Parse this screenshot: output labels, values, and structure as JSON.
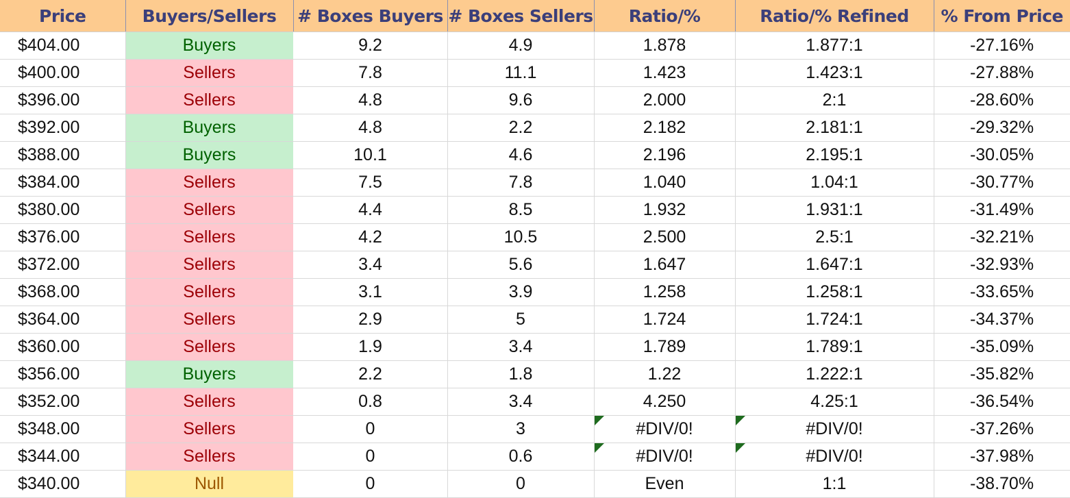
{
  "headers": [
    "Price",
    "Buyers/Sellers",
    "# Boxes Buyers",
    "# Boxes Sellers",
    "Ratio/%",
    "Ratio/% Refined",
    "% From Price"
  ],
  "colors": {
    "header_bg": "#fdcb8f",
    "header_text": "#3b3f7a",
    "buyers_bg": "#c6efce",
    "buyers_text": "#006100",
    "sellers_bg": "#ffc7ce",
    "sellers_text": "#9c0006",
    "null_bg": "#ffeb9c",
    "null_text": "#9c5700",
    "error_flag": "#1e6b1e"
  },
  "rows": [
    {
      "price": "$404.00",
      "side": "Buyers",
      "buyers": "9.2",
      "sellers": "4.9",
      "ratio": "1.878",
      "refined": "1.877:1",
      "from_price": "-27.16%",
      "error_flag": false
    },
    {
      "price": "$400.00",
      "side": "Sellers",
      "buyers": "7.8",
      "sellers": "11.1",
      "ratio": "1.423",
      "refined": "1.423:1",
      "from_price": "-27.88%",
      "error_flag": false
    },
    {
      "price": "$396.00",
      "side": "Sellers",
      "buyers": "4.8",
      "sellers": "9.6",
      "ratio": "2.000",
      "refined": "2:1",
      "from_price": "-28.60%",
      "error_flag": false
    },
    {
      "price": "$392.00",
      "side": "Buyers",
      "buyers": "4.8",
      "sellers": "2.2",
      "ratio": "2.182",
      "refined": "2.181:1",
      "from_price": "-29.32%",
      "error_flag": false
    },
    {
      "price": "$388.00",
      "side": "Buyers",
      "buyers": "10.1",
      "sellers": "4.6",
      "ratio": "2.196",
      "refined": "2.195:1",
      "from_price": "-30.05%",
      "error_flag": false
    },
    {
      "price": "$384.00",
      "side": "Sellers",
      "buyers": "7.5",
      "sellers": "7.8",
      "ratio": "1.040",
      "refined": "1.04:1",
      "from_price": "-30.77%",
      "error_flag": false
    },
    {
      "price": "$380.00",
      "side": "Sellers",
      "buyers": "4.4",
      "sellers": "8.5",
      "ratio": "1.932",
      "refined": "1.931:1",
      "from_price": "-31.49%",
      "error_flag": false
    },
    {
      "price": "$376.00",
      "side": "Sellers",
      "buyers": "4.2",
      "sellers": "10.5",
      "ratio": "2.500",
      "refined": "2.5:1",
      "from_price": "-32.21%",
      "error_flag": false
    },
    {
      "price": "$372.00",
      "side": "Sellers",
      "buyers": "3.4",
      "sellers": "5.6",
      "ratio": "1.647",
      "refined": "1.647:1",
      "from_price": "-32.93%",
      "error_flag": false
    },
    {
      "price": "$368.00",
      "side": "Sellers",
      "buyers": "3.1",
      "sellers": "3.9",
      "ratio": "1.258",
      "refined": "1.258:1",
      "from_price": "-33.65%",
      "error_flag": false
    },
    {
      "price": "$364.00",
      "side": "Sellers",
      "buyers": "2.9",
      "sellers": "5",
      "ratio": "1.724",
      "refined": "1.724:1",
      "from_price": "-34.37%",
      "error_flag": false
    },
    {
      "price": "$360.00",
      "side": "Sellers",
      "buyers": "1.9",
      "sellers": "3.4",
      "ratio": "1.789",
      "refined": "1.789:1",
      "from_price": "-35.09%",
      "error_flag": false
    },
    {
      "price": "$356.00",
      "side": "Buyers",
      "buyers": "2.2",
      "sellers": "1.8",
      "ratio": "1.22",
      "refined": "1.222:1",
      "from_price": "-35.82%",
      "error_flag": false
    },
    {
      "price": "$352.00",
      "side": "Sellers",
      "buyers": "0.8",
      "sellers": "3.4",
      "ratio": "4.250",
      "refined": "4.25:1",
      "from_price": "-36.54%",
      "error_flag": false
    },
    {
      "price": "$348.00",
      "side": "Sellers",
      "buyers": "0",
      "sellers": "3",
      "ratio": "#DIV/0!",
      "refined": "#DIV/0!",
      "from_price": "-37.26%",
      "error_flag": true
    },
    {
      "price": "$344.00",
      "side": "Sellers",
      "buyers": "0",
      "sellers": "0.6",
      "ratio": "#DIV/0!",
      "refined": "#DIV/0!",
      "from_price": "-37.98%",
      "error_flag": true
    },
    {
      "price": "$340.00",
      "side": "Null",
      "buyers": "0",
      "sellers": "0",
      "ratio": "Even",
      "refined": "1:1",
      "from_price": "-38.70%",
      "error_flag": false
    }
  ]
}
